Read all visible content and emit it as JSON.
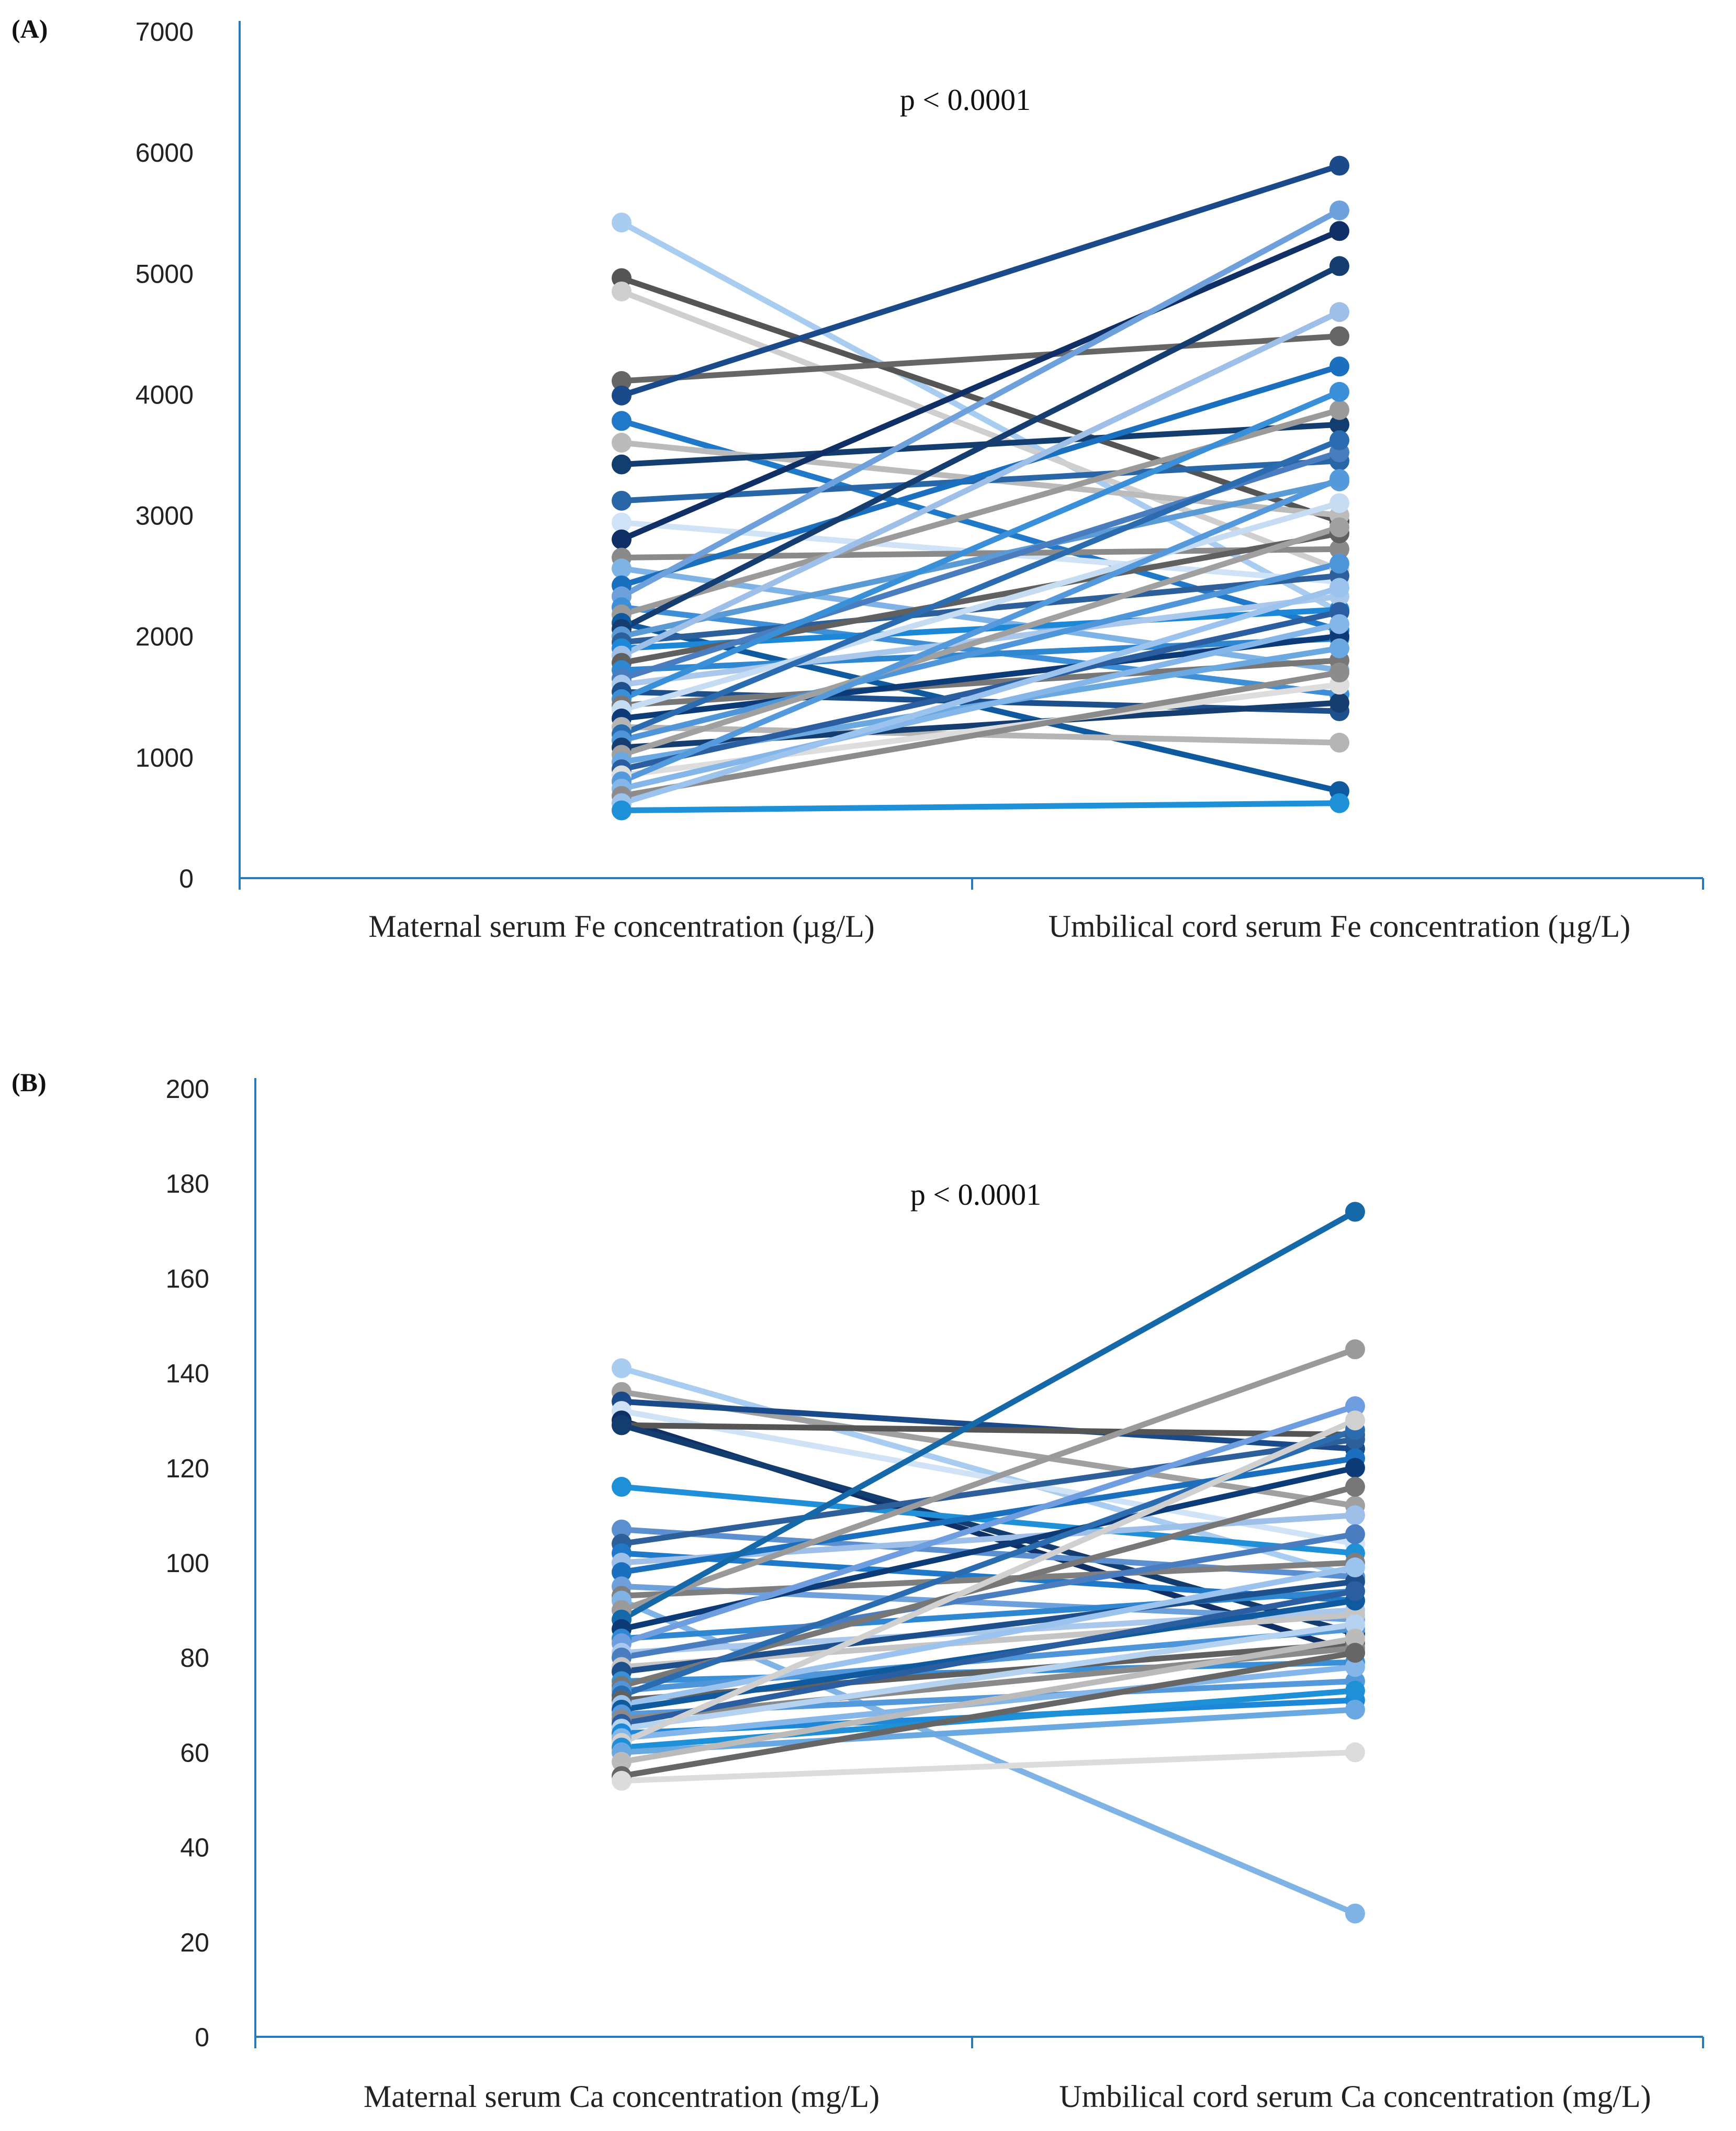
{
  "chart_data": [
    {
      "type": "line",
      "panel": "(A)",
      "categories": [
        "Maternal serum Fe concentration (µg/L)",
        "Umbilical cord serum Fe concentration (µg/L)"
      ],
      "ylim": [
        0,
        7000
      ],
      "yticks": [
        0,
        1000,
        2000,
        3000,
        4000,
        5000,
        6000,
        7000
      ],
      "annotation": "p < 0.0001",
      "grid": false,
      "series": [
        {
          "values": [
            5420,
            2200
          ],
          "color": "#a8cdf0"
        },
        {
          "values": [
            4960,
            2950
          ],
          "color": "#555555"
        },
        {
          "values": [
            4850,
            2550
          ],
          "color": "#cfcfcf"
        },
        {
          "values": [
            4110,
            4480
          ],
          "color": "#666666"
        },
        {
          "values": [
            3990,
            5890
          ],
          "color": "#1a4a8a"
        },
        {
          "values": [
            3780,
            2050
          ],
          "color": "#1f78c8"
        },
        {
          "values": [
            3600,
            3000
          ],
          "color": "#bbbbbb"
        },
        {
          "values": [
            3420,
            3750
          ],
          "color": "#123d6e"
        },
        {
          "values": [
            3120,
            3450
          ],
          "color": "#2866a8"
        },
        {
          "values": [
            2940,
            2450
          ],
          "color": "#cfe2f6"
        },
        {
          "values": [
            2800,
            5350
          ],
          "color": "#0f2f66"
        },
        {
          "values": [
            2650,
            2720
          ],
          "color": "#8a8a8a"
        },
        {
          "values": [
            2560,
            1720
          ],
          "color": "#7fb3e6"
        },
        {
          "values": [
            2420,
            4230
          ],
          "color": "#1a6fbf"
        },
        {
          "values": [
            2330,
            5520
          ],
          "color": "#6ea0dc"
        },
        {
          "values": [
            2240,
            1520
          ],
          "color": "#3f8fd8"
        },
        {
          "values": [
            2180,
            3870
          ],
          "color": "#9a9a9a"
        },
        {
          "values": [
            2110,
            720
          ],
          "color": "#0f5a9e"
        },
        {
          "values": [
            2060,
            5060
          ],
          "color": "#163d70"
        },
        {
          "values": [
            2000,
            3280
          ],
          "color": "#5b9bd5"
        },
        {
          "values": [
            1950,
            2500
          ],
          "color": "#2d5f9a"
        },
        {
          "values": [
            1900,
            2220
          ],
          "color": "#1e88d8"
        },
        {
          "values": [
            1840,
            4680
          ],
          "color": "#9dbfe8"
        },
        {
          "values": [
            1780,
            2850
          ],
          "color": "#606060"
        },
        {
          "values": [
            1720,
            1980
          ],
          "color": "#2f86d1"
        },
        {
          "values": [
            1650,
            3520
          ],
          "color": "#4a7cc0"
        },
        {
          "values": [
            1600,
            2330
          ],
          "color": "#aac8ec"
        },
        {
          "values": [
            1540,
            1380
          ],
          "color": "#1c4f8c"
        },
        {
          "values": [
            1480,
            4020
          ],
          "color": "#3a90d8"
        },
        {
          "values": [
            1430,
            1800
          ],
          "color": "#777777"
        },
        {
          "values": [
            1390,
            3100
          ],
          "color": "#c5dcf2"
        },
        {
          "values": [
            1320,
            2000
          ],
          "color": "#0d3b78"
        },
        {
          "values": [
            1250,
            1120
          ],
          "color": "#b5b5b5"
        },
        {
          "values": [
            1190,
            3620
          ],
          "color": "#2b6cb0"
        },
        {
          "values": [
            1140,
            2600
          ],
          "color": "#4e96d9"
        },
        {
          "values": [
            1080,
            1450
          ],
          "color": "#163d70"
        },
        {
          "values": [
            1020,
            2900
          ],
          "color": "#a0a0a0"
        },
        {
          "values": [
            960,
            1900
          ],
          "color": "#6aa8e2"
        },
        {
          "values": [
            900,
            2200
          ],
          "color": "#2a5ea0"
        },
        {
          "values": [
            850,
            1600
          ],
          "color": "#dddddd"
        },
        {
          "values": [
            800,
            3300
          ],
          "color": "#5599dd"
        },
        {
          "values": [
            740,
            2100
          ],
          "color": "#84b6ea"
        },
        {
          "values": [
            680,
            1700
          ],
          "color": "#8c8c8c"
        },
        {
          "values": [
            620,
            2400
          ],
          "color": "#9cc3ee"
        },
        {
          "values": [
            560,
            620
          ],
          "color": "#1e90d8"
        }
      ]
    },
    {
      "type": "line",
      "panel": "(B)",
      "categories": [
        "Maternal serum Ca concentration (mg/L)",
        "Umbilical cord serum Ca concentration (mg/L)"
      ],
      "ylim": [
        0,
        200
      ],
      "yticks": [
        0,
        20,
        40,
        60,
        80,
        100,
        120,
        140,
        160,
        180,
        200
      ],
      "annotation": "p < 0.0001",
      "grid": false,
      "series": [
        {
          "values": [
            141,
            97
          ],
          "color": "#a8cdf0"
        },
        {
          "values": [
            136,
            112
          ],
          "color": "#a0a0a0"
        },
        {
          "values": [
            134,
            124
          ],
          "color": "#1a4a8a"
        },
        {
          "values": [
            132,
            104
          ],
          "color": "#cfe2f6"
        },
        {
          "values": [
            130,
            81
          ],
          "color": "#0f2f66"
        },
        {
          "values": [
            129,
            127
          ],
          "color": "#555555"
        },
        {
          "values": [
            129,
            85
          ],
          "color": "#123d6e"
        },
        {
          "values": [
            116,
            102
          ],
          "color": "#1f90d8"
        },
        {
          "values": [
            107,
            97
          ],
          "color": "#5b8fcf"
        },
        {
          "values": [
            104,
            126
          ],
          "color": "#2d5f9a"
        },
        {
          "values": [
            102,
            92
          ],
          "color": "#1f78c8"
        },
        {
          "values": [
            100,
            110
          ],
          "color": "#9dbfe8"
        },
        {
          "values": [
            98,
            122
          ],
          "color": "#1a6fbf"
        },
        {
          "values": [
            95,
            88
          ],
          "color": "#6ea0dc"
        },
        {
          "values": [
            93,
            100
          ],
          "color": "#7f7f7f"
        },
        {
          "values": [
            92,
            26
          ],
          "color": "#7fb3e6"
        },
        {
          "values": [
            90,
            145
          ],
          "color": "#9a9a9a"
        },
        {
          "values": [
            88,
            174
          ],
          "color": "#1569a8"
        },
        {
          "values": [
            86,
            120
          ],
          "color": "#0d3b78"
        },
        {
          "values": [
            84,
            94
          ],
          "color": "#2f86d1"
        },
        {
          "values": [
            83,
            133
          ],
          "color": "#6e9ee0"
        },
        {
          "values": [
            81,
            90
          ],
          "color": "#aac8ec"
        },
        {
          "values": [
            80,
            106
          ],
          "color": "#4a7cc0"
        },
        {
          "values": [
            78,
            89
          ],
          "color": "#c5c5c5"
        },
        {
          "values": [
            77,
            96
          ],
          "color": "#1c4f8c"
        },
        {
          "values": [
            75,
            79
          ],
          "color": "#3a90d8"
        },
        {
          "values": [
            74,
            116
          ],
          "color": "#777777"
        },
        {
          "values": [
            73,
            86
          ],
          "color": "#4e96d9"
        },
        {
          "values": [
            72,
            128
          ],
          "color": "#2b6cb0"
        },
        {
          "values": [
            71,
            83
          ],
          "color": "#606060"
        },
        {
          "values": [
            70,
            99
          ],
          "color": "#9cc3ee"
        },
        {
          "values": [
            69,
            92
          ],
          "color": "#0f5a9e"
        },
        {
          "values": [
            68,
            75
          ],
          "color": "#5599dd"
        },
        {
          "values": [
            67,
            82
          ],
          "color": "#8a8a8a"
        },
        {
          "values": [
            66,
            94
          ],
          "color": "#2a5ea0"
        },
        {
          "values": [
            65,
            87
          ],
          "color": "#b5d2f0"
        },
        {
          "values": [
            64,
            71
          ],
          "color": "#1e88d8"
        },
        {
          "values": [
            63,
            78
          ],
          "color": "#84b6ea"
        },
        {
          "values": [
            62,
            130
          ],
          "color": "#d0d0d0"
        },
        {
          "values": [
            61,
            73
          ],
          "color": "#1e90d8"
        },
        {
          "values": [
            60,
            69
          ],
          "color": "#6aa8e2"
        },
        {
          "values": [
            58,
            84
          ],
          "color": "#bbbbbb"
        },
        {
          "values": [
            55,
            81
          ],
          "color": "#666666"
        },
        {
          "values": [
            54,
            60
          ],
          "color": "#dcdcdc"
        }
      ]
    }
  ]
}
